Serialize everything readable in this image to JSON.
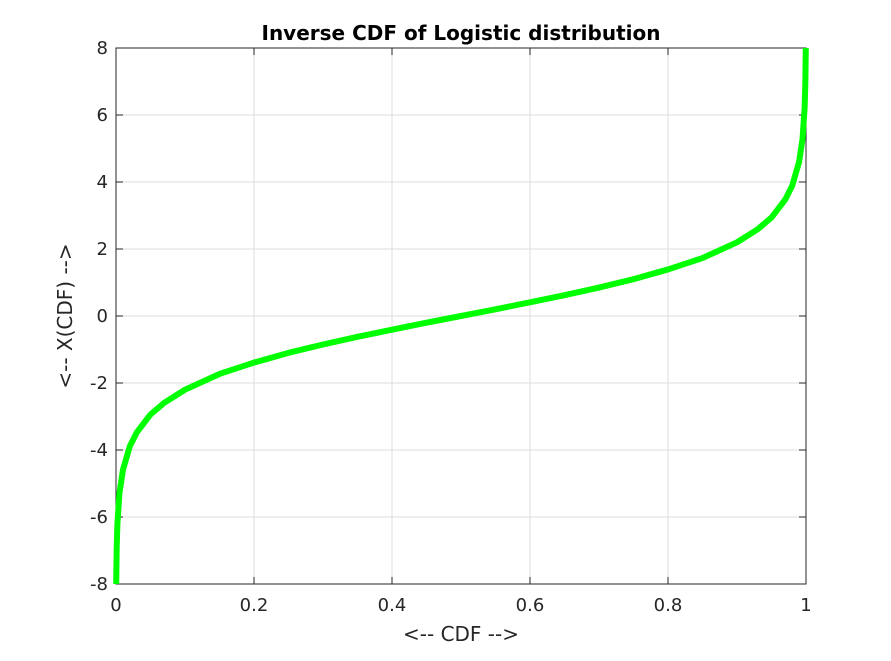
{
  "chart_data": {
    "type": "line",
    "title": "Inverse CDF of Logistic distribution",
    "xlabel": "<-- CDF -->",
    "ylabel": "<-- X(CDF) -->",
    "xlim": [
      0,
      1
    ],
    "ylim": [
      -8,
      8
    ],
    "xticks": [
      0,
      0.2,
      0.4,
      0.6,
      0.8,
      1
    ],
    "xtick_labels": [
      "0",
      "0.2",
      "0.4",
      "0.6",
      "0.8",
      "1"
    ],
    "yticks": [
      -8,
      -6,
      -4,
      -2,
      0,
      2,
      4,
      6,
      8
    ],
    "ytick_labels": [
      "-8",
      "-6",
      "-4",
      "-2",
      "0",
      "2",
      "4",
      "6",
      "8"
    ],
    "grid": true,
    "series": [
      {
        "color": "#00ff00",
        "x": [
          0.0003,
          0.001,
          0.002,
          0.005,
          0.01,
          0.02,
          0.03,
          0.05,
          0.07,
          0.1,
          0.15,
          0.2,
          0.25,
          0.3,
          0.35,
          0.4,
          0.45,
          0.5,
          0.55,
          0.6,
          0.65,
          0.7,
          0.75,
          0.8,
          0.85,
          0.9,
          0.93,
          0.95,
          0.97,
          0.98,
          0.99,
          0.995,
          0.998,
          0.999,
          0.9997
        ],
        "y": [
          -8.0,
          -6.91,
          -6.21,
          -5.29,
          -4.6,
          -3.89,
          -3.48,
          -2.94,
          -2.59,
          -2.2,
          -1.73,
          -1.39,
          -1.1,
          -0.85,
          -0.62,
          -0.41,
          -0.2,
          0.0,
          0.2,
          0.41,
          0.62,
          0.85,
          1.1,
          1.39,
          1.73,
          2.2,
          2.59,
          2.94,
          3.48,
          3.89,
          4.6,
          5.29,
          6.21,
          6.91,
          8.0
        ]
      }
    ]
  }
}
